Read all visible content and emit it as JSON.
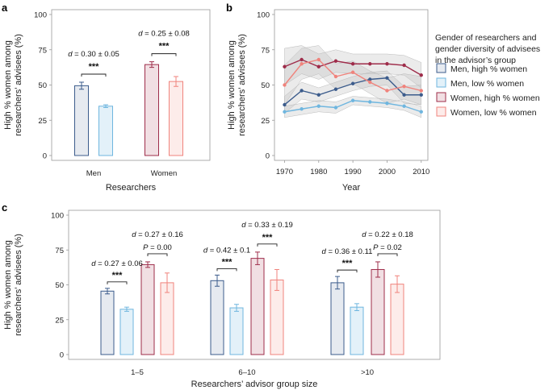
{
  "colors": {
    "men_high": "#3c5c8c",
    "men_high_fill": "#e6eaf0",
    "men_low": "#6fb6df",
    "men_low_fill": "#e3f1f9",
    "women_high": "#9e2c4a",
    "women_high_fill": "#f1dfe3",
    "women_low": "#f0837c",
    "women_low_fill": "#fdecea",
    "band": "#cccccc"
  },
  "panel_labels": {
    "a": "a",
    "b": "b",
    "c": "c"
  },
  "chart_data": [
    {
      "id": "a",
      "type": "bar",
      "ylabel_line1": "High % women among",
      "ylabel_line2": "researchers’ advisees (%)",
      "xlabel": "Researchers",
      "ylim": [
        0,
        100
      ],
      "yticks": [
        0,
        25,
        50,
        75,
        100
      ],
      "categories": [
        "Men",
        "Women"
      ],
      "series": [
        {
          "name": "high",
          "values": [
            49.5,
            64.5
          ],
          "errors": [
            2.5,
            2
          ]
        },
        {
          "name": "low",
          "values": [
            35,
            52.5
          ],
          "errors": [
            1,
            3.5
          ]
        }
      ],
      "annotations": [
        {
          "d_label": "d",
          "d_text": " = 0.30 ± 0.05",
          "stars": "***"
        },
        {
          "d_label": "d",
          "d_text": " = 0.25 ± 0.08",
          "stars": "***"
        }
      ]
    },
    {
      "id": "b",
      "type": "line",
      "ylabel_line1": "High % women among",
      "ylabel_line2": "researchers’ advisees (%)",
      "xlabel": "Year",
      "ylim": [
        0,
        100
      ],
      "yticks": [
        0,
        25,
        50,
        75,
        100
      ],
      "xlim": [
        1968,
        2011
      ],
      "xticks": [
        1970,
        1980,
        1990,
        2000,
        2010
      ],
      "x": [
        1970,
        1975,
        1980,
        1985,
        1990,
        1995,
        2000,
        2005,
        2010
      ],
      "series": [
        {
          "name": "Men, high % women",
          "values": [
            36,
            46,
            43,
            47,
            51,
            54,
            55,
            43,
            43
          ],
          "band": [
            [
              30,
              42
            ],
            [
              40,
              52
            ],
            [
              38,
              48
            ],
            [
              42,
              52
            ],
            [
              46,
              56
            ],
            [
              49,
              59
            ],
            [
              50,
              60
            ],
            [
              37,
              49
            ],
            [
              36,
              50
            ]
          ]
        },
        {
          "name": "Men, low % women",
          "values": [
            31,
            33,
            35,
            34,
            39,
            38,
            37,
            35,
            31
          ],
          "band": [
            [
              27,
              35
            ],
            [
              29,
              37
            ],
            [
              31,
              39
            ],
            [
              30,
              38
            ],
            [
              36,
              42
            ],
            [
              35,
              41
            ],
            [
              34,
              40
            ],
            [
              32,
              38
            ],
            [
              27,
              35
            ]
          ]
        },
        {
          "name": "Women, high % women",
          "values": [
            63,
            68,
            63,
            67,
            65,
            65,
            65,
            64,
            57
          ],
          "band": [
            [
              50,
              76
            ],
            [
              58,
              78
            ],
            [
              54,
              72
            ],
            [
              59,
              75
            ],
            [
              58,
              72
            ],
            [
              58,
              72
            ],
            [
              58,
              72
            ],
            [
              57,
              71
            ],
            [
              48,
              66
            ]
          ]
        },
        {
          "name": "Women, low % women",
          "values": [
            50,
            65,
            68,
            56,
            59,
            52,
            46,
            49,
            46
          ],
          "band": [
            [
              36,
              64
            ],
            [
              54,
              76
            ],
            [
              58,
              78
            ],
            [
              47,
              65
            ],
            [
              51,
              67
            ],
            [
              44,
              60
            ],
            [
              37,
              55
            ],
            [
              40,
              58
            ],
            [
              36,
              56
            ]
          ]
        }
      ],
      "legend_title": [
        "Gender of researchers and",
        "gender diversity of advisees",
        "in the advisor’s group"
      ],
      "legend": [
        "Men, high % women",
        "Men, low % women",
        "Women, high % women",
        "Women, low % women"
      ]
    },
    {
      "id": "c",
      "type": "bar",
      "ylabel_line1": "High % women among",
      "ylabel_line2": "researchers’ advisees (%)",
      "xlabel": "Researchers’ advisor group size",
      "ylim": [
        0,
        100
      ],
      "yticks": [
        0,
        25,
        50,
        75,
        100
      ],
      "categories": [
        "1–5",
        "6–10",
        ">10"
      ],
      "series": [
        {
          "name": "Men, high % women",
          "values": [
            45.5,
            53,
            51.5
          ],
          "errors": [
            2,
            4,
            4.5
          ]
        },
        {
          "name": "Men, low % women",
          "values": [
            32.5,
            33.5,
            34
          ],
          "errors": [
            1.5,
            2.5,
            2.5
          ]
        },
        {
          "name": "Women, high % women",
          "values": [
            64.5,
            69,
            61
          ],
          "errors": [
            2,
            4.5,
            5.5
          ]
        },
        {
          "name": "Women, low % women",
          "values": [
            51.5,
            53.5,
            50.5
          ],
          "errors": [
            7,
            7.5,
            6
          ]
        }
      ],
      "annotations": [
        {
          "men": {
            "d_label": "d",
            "d_text": " = 0.27 ± 0.06",
            "stars": "***"
          },
          "women": {
            "d_label": "d",
            "d_text": " = 0.27 ± 0.16",
            "p_label": "P",
            "p_text": " = 0.00"
          }
        },
        {
          "men": {
            "d_label": "d",
            "d_text": " = 0.42 ± 0.1",
            "stars": "***"
          },
          "women": {
            "d_label": "d",
            "d_text": " = 0.33 ± 0.19",
            "stars": "***"
          }
        },
        {
          "men": {
            "d_label": "d",
            "d_text": " = 0.36 ± 0.11",
            "stars": "***"
          },
          "women": {
            "d_label": "d",
            "d_text": " = 0.22 ± 0.18",
            "p_label": "P",
            "p_text": " = 0.02"
          }
        }
      ]
    }
  ]
}
